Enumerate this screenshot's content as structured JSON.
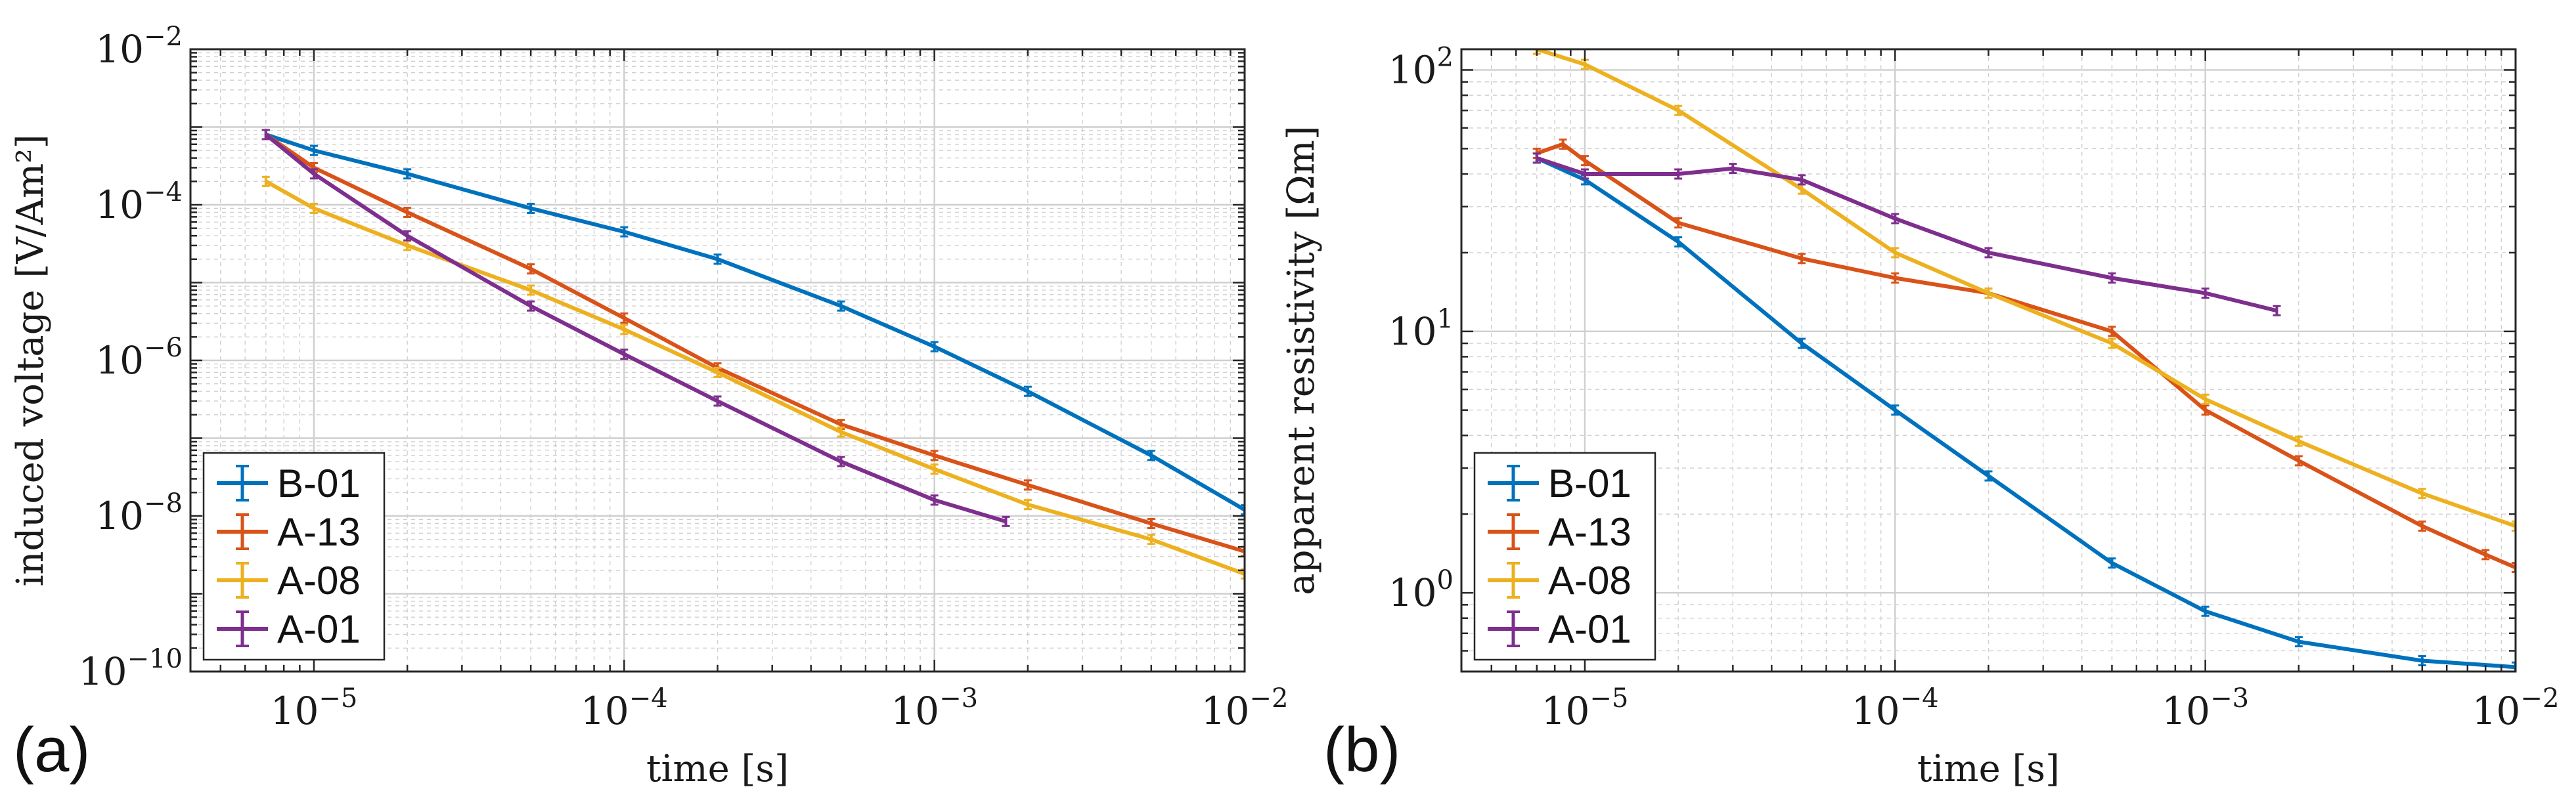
{
  "colors": {
    "B-01": "#0072BD",
    "A-13": "#D95319",
    "A-08": "#EDB120",
    "A-01": "#7E2F8E",
    "grid": "#cfcfcf",
    "axis": "#262626"
  },
  "chart_data": [
    {
      "type": "line",
      "panel_label": "(a)",
      "xlabel": "time [s]",
      "ylabel": "induced voltage [V/Am²]",
      "xscale": "log",
      "yscale": "log",
      "xlim": [
        4e-06,
        0.01
      ],
      "ylim": [
        1e-10,
        0.01
      ],
      "grid": true,
      "legend_position": "bottom-left",
      "xticks": [
        {
          "value": 1e-05,
          "base": "10",
          "exp": "−5"
        },
        {
          "value": 0.0001,
          "base": "10",
          "exp": "−4"
        },
        {
          "value": 0.001,
          "base": "10",
          "exp": "−3"
        },
        {
          "value": 0.01,
          "base": "10",
          "exp": "−2"
        }
      ],
      "yticks": [
        {
          "value": 1e-10,
          "base": "10",
          "exp": "−10"
        },
        {
          "value": 1e-08,
          "base": "10",
          "exp": "−8"
        },
        {
          "value": 1e-06,
          "base": "10",
          "exp": "−6"
        },
        {
          "value": 0.0001,
          "base": "10",
          "exp": "−4"
        },
        {
          "value": 0.01,
          "base": "10",
          "exp": "−2"
        }
      ],
      "series": [
        {
          "name": "B-01",
          "x": [
            7e-06,
            1e-05,
            2e-05,
            5e-05,
            0.0001,
            0.0002,
            0.0005,
            0.001,
            0.002,
            0.005,
            0.01
          ],
          "y": [
            0.0008,
            0.0005,
            0.00025,
            9e-05,
            4.5e-05,
            2e-05,
            5e-06,
            1.5e-06,
            4e-07,
            6e-08,
            1.2e-08
          ]
        },
        {
          "name": "A-13",
          "x": [
            7e-06,
            1e-05,
            2e-05,
            5e-05,
            0.0001,
            0.0002,
            0.0005,
            0.001,
            0.002,
            0.005,
            0.01
          ],
          "y": [
            0.0008,
            0.0003,
            8e-05,
            1.5e-05,
            3.5e-06,
            8e-07,
            1.5e-07,
            6e-08,
            2.5e-08,
            8e-09,
            3.5e-09
          ]
        },
        {
          "name": "A-08",
          "x": [
            7e-06,
            1e-05,
            2e-05,
            5e-05,
            0.0001,
            0.0002,
            0.0005,
            0.001,
            0.002,
            0.005,
            0.01
          ],
          "y": [
            0.0002,
            9e-05,
            3e-05,
            8e-06,
            2.5e-06,
            7e-07,
            1.2e-07,
            4e-08,
            1.4e-08,
            5e-09,
            1.8e-09
          ]
        },
        {
          "name": "A-01",
          "x": [
            7e-06,
            1e-05,
            2e-05,
            5e-05,
            0.0001,
            0.0002,
            0.0005,
            0.001,
            0.0017
          ],
          "y": [
            0.0008,
            0.00025,
            4e-05,
            5e-06,
            1.2e-06,
            3e-07,
            5e-08,
            1.6e-08,
            8.5e-09
          ]
        }
      ]
    },
    {
      "type": "line",
      "panel_label": "(b)",
      "xlabel": "time [s]",
      "ylabel": "apparent resistivity [Ωm]",
      "xscale": "log",
      "yscale": "log",
      "xlim": [
        4e-06,
        0.01
      ],
      "ylim": [
        0.5,
        120
      ],
      "grid": true,
      "legend_position": "bottom-left",
      "xticks": [
        {
          "value": 1e-05,
          "base": "10",
          "exp": "−5"
        },
        {
          "value": 0.0001,
          "base": "10",
          "exp": "−4"
        },
        {
          "value": 0.001,
          "base": "10",
          "exp": "−3"
        },
        {
          "value": 0.01,
          "base": "10",
          "exp": "−2"
        }
      ],
      "yticks": [
        {
          "value": 1,
          "base": "10",
          "exp": "0"
        },
        {
          "value": 10,
          "base": "10",
          "exp": "1"
        },
        {
          "value": 100,
          "base": "10",
          "exp": "2"
        }
      ],
      "series": [
        {
          "name": "B-01",
          "x": [
            7e-06,
            1e-05,
            2e-05,
            5e-05,
            0.0001,
            0.0002,
            0.0005,
            0.001,
            0.002,
            0.005,
            0.01
          ],
          "y": [
            46,
            38,
            22,
            9,
            5,
            2.8,
            1.3,
            0.85,
            0.65,
            0.55,
            0.52
          ]
        },
        {
          "name": "A-13",
          "x": [
            7e-06,
            8.5e-06,
            1e-05,
            2e-05,
            5e-05,
            0.0001,
            0.0002,
            0.0005,
            0.001,
            0.002,
            0.005,
            0.008,
            0.01
          ],
          "y": [
            48,
            52,
            45,
            26,
            19,
            16,
            14,
            10,
            5,
            3.2,
            1.8,
            1.4,
            1.25
          ]
        },
        {
          "name": "A-08",
          "x": [
            7e-06,
            1e-05,
            2e-05,
            5e-05,
            0.0001,
            0.0002,
            0.0005,
            0.001,
            0.002,
            0.005,
            0.01
          ],
          "y": [
            120,
            105,
            70,
            35,
            20,
            14,
            9,
            5.5,
            3.8,
            2.4,
            1.8
          ]
        },
        {
          "name": "A-01",
          "x": [
            7e-06,
            1e-05,
            2e-05,
            3e-05,
            5e-05,
            0.0001,
            0.0002,
            0.0005,
            0.001,
            0.0017
          ],
          "y": [
            46,
            40,
            40,
            42,
            38,
            27,
            20,
            16,
            14,
            12
          ]
        }
      ]
    }
  ]
}
